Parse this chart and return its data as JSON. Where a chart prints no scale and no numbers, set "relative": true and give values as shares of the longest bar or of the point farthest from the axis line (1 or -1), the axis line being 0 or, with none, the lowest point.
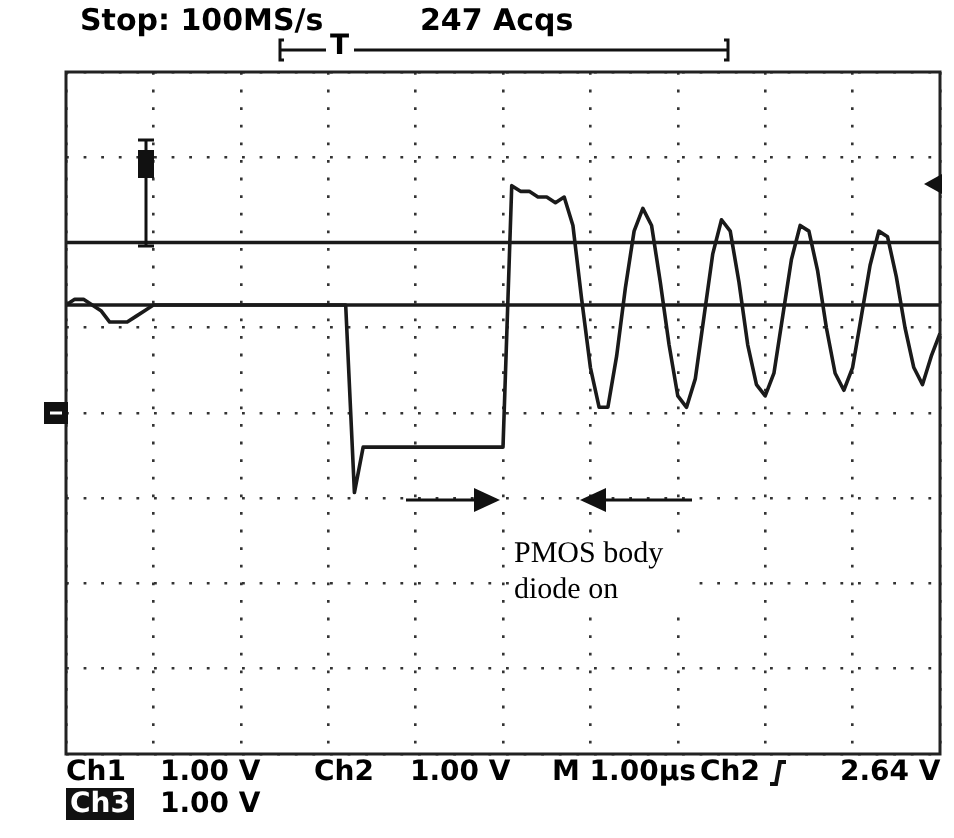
{
  "chart_data": {
    "type": "line",
    "title": "Stop: 100MS/s",
    "subtitle": "247 Acqs",
    "relative": true,
    "grid": true,
    "legend": false,
    "marker": "none",
    "line_style": "solid",
    "annotations": [
      "T",
      "Ch1",
      "1.00 V",
      "Ch2",
      "1.00 V",
      "M 1.00µs",
      "Ch2",
      "2.64 V",
      "Ch3",
      "1.00 V",
      "PMOS body diode on"
    ],
    "categories": [
      null,
      null,
      null,
      null,
      null,
      null,
      null,
      null,
      null,
      null,
      null,
      null,
      null,
      null,
      null,
      null,
      null,
      null,
      null,
      null,
      null,
      null,
      null,
      null,
      null,
      null,
      null,
      null,
      null,
      null,
      null,
      null,
      null,
      null,
      null,
      null,
      null,
      null,
      null,
      null,
      null,
      null,
      null,
      null,
      null,
      null,
      null,
      null,
      null,
      null,
      null,
      null,
      null,
      null,
      null,
      null,
      null,
      null,
      null,
      null,
      null,
      null,
      null,
      null,
      null,
      null,
      null,
      null,
      null,
      null,
      null,
      null,
      null,
      null,
      null,
      null,
      null,
      null,
      null,
      null,
      null,
      null,
      null,
      null,
      null,
      null,
      null,
      null,
      null,
      null,
      null,
      null,
      null,
      null,
      null,
      null,
      null,
      null,
      null,
      null,
      null
    ],
    "series": [
      {
        "color": "#1a1a1a",
        "values": [
          0.9,
          0.9,
          0.9,
          0.9,
          0.9,
          0.9,
          0.9,
          0.9,
          0.9,
          0.9,
          0.9,
          0.9,
          0.9,
          0.9,
          0.9,
          0.9,
          0.9,
          0.9,
          0.9,
          0.9,
          0.9,
          0.9,
          0.9,
          0.9,
          0.9,
          0.9,
          0.9,
          0.9,
          0.9,
          0.9,
          0.9,
          0.9,
          0.9,
          0.9,
          0.9,
          0.9,
          0.9,
          0.9,
          0.9,
          0.9,
          0.9,
          0.9,
          0.9,
          0.9,
          0.9,
          0.9,
          0.9,
          0.9,
          0.9,
          0.9,
          0.9,
          0.9,
          0.9,
          0.9,
          0.9,
          0.9,
          0.9,
          0.9,
          0.9,
          0.9,
          0.9,
          0.9,
          0.9,
          0.9,
          0.9,
          0.9,
          0.9,
          0.9,
          0.9,
          0.9,
          0.9,
          0.9,
          0.9,
          0.9,
          0.9,
          0.9,
          0.9,
          0.9,
          0.9,
          0.9,
          0.9,
          0.9,
          0.9,
          0.9,
          0.9,
          0.9,
          0.9,
          0.9,
          0.9,
          0.9,
          0.9,
          0.9,
          0.9,
          0.9,
          0.9,
          0.9,
          0.9,
          0.9,
          0.9,
          0.9,
          0.9
        ]
      },
      {
        "color": "#1a1a1a",
        "values": [
          0.79,
          0.79,
          0.79,
          0.79,
          0.79,
          0.79,
          0.79,
          0.79,
          0.79,
          0.79,
          0.79,
          0.79,
          0.79,
          0.79,
          0.79,
          0.79,
          0.79,
          0.79,
          0.79,
          0.79,
          0.79,
          0.79,
          0.79,
          0.79,
          0.79,
          0.79,
          0.79,
          0.79,
          0.79,
          0.79,
          0.79,
          0.79,
          0.79,
          0.79,
          0.79,
          0.79,
          0.79,
          0.79,
          0.79,
          0.79,
          0.79,
          0.79,
          0.79,
          0.79,
          0.79,
          0.79,
          0.79,
          0.79,
          0.79,
          0.79,
          0.79,
          0.79,
          0.79,
          0.79,
          0.79,
          0.79,
          0.79,
          0.79,
          0.79,
          0.79,
          0.79,
          0.79,
          0.79,
          0.79,
          0.79,
          0.79,
          0.79,
          0.79,
          0.79,
          0.79,
          0.79,
          0.79,
          0.79,
          0.79,
          0.79,
          0.79,
          0.79,
          0.79,
          0.79,
          0.79,
          0.79,
          0.79,
          0.79,
          0.79,
          0.79,
          0.79,
          0.79,
          0.79,
          0.79,
          0.79,
          0.79,
          0.79,
          0.79,
          0.79,
          0.79,
          0.79,
          0.79,
          0.79,
          0.79,
          0.79,
          0.79
        ]
      },
      {
        "color": "#1a1a1a",
        "values": [
          0.79,
          0.8,
          0.8,
          0.79,
          0.78,
          0.76,
          0.76,
          0.76,
          0.77,
          0.78,
          0.79,
          0.79,
          0.79,
          0.79,
          0.79,
          0.79,
          0.79,
          0.79,
          0.79,
          0.79,
          0.79,
          0.79,
          0.79,
          0.79,
          0.79,
          0.79,
          0.79,
          0.79,
          0.79,
          0.79,
          0.79,
          0.79,
          0.79,
          0.46,
          0.54,
          0.54,
          0.54,
          0.54,
          0.54,
          0.54,
          0.54,
          0.54,
          0.54,
          0.54,
          0.54,
          0.54,
          0.54,
          0.54,
          0.54,
          0.54,
          0.54,
          1,
          0.99,
          0.99,
          0.98,
          0.98,
          0.97,
          0.98,
          0.93,
          0.8,
          0.68,
          0.61,
          0.61,
          0.7,
          0.82,
          0.92,
          0.96,
          0.93,
          0.83,
          0.72,
          0.63,
          0.61,
          0.66,
          0.77,
          0.88,
          0.94,
          0.92,
          0.83,
          0.72,
          0.65,
          0.63,
          0.67,
          0.77,
          0.87,
          0.93,
          0.92,
          0.85,
          0.75,
          0.67,
          0.64,
          0.68,
          0.77,
          0.86,
          0.92,
          0.91,
          0.84,
          0.75,
          0.68,
          0.65,
          0.7,
          0.74
        ]
      }
    ]
  }
}
